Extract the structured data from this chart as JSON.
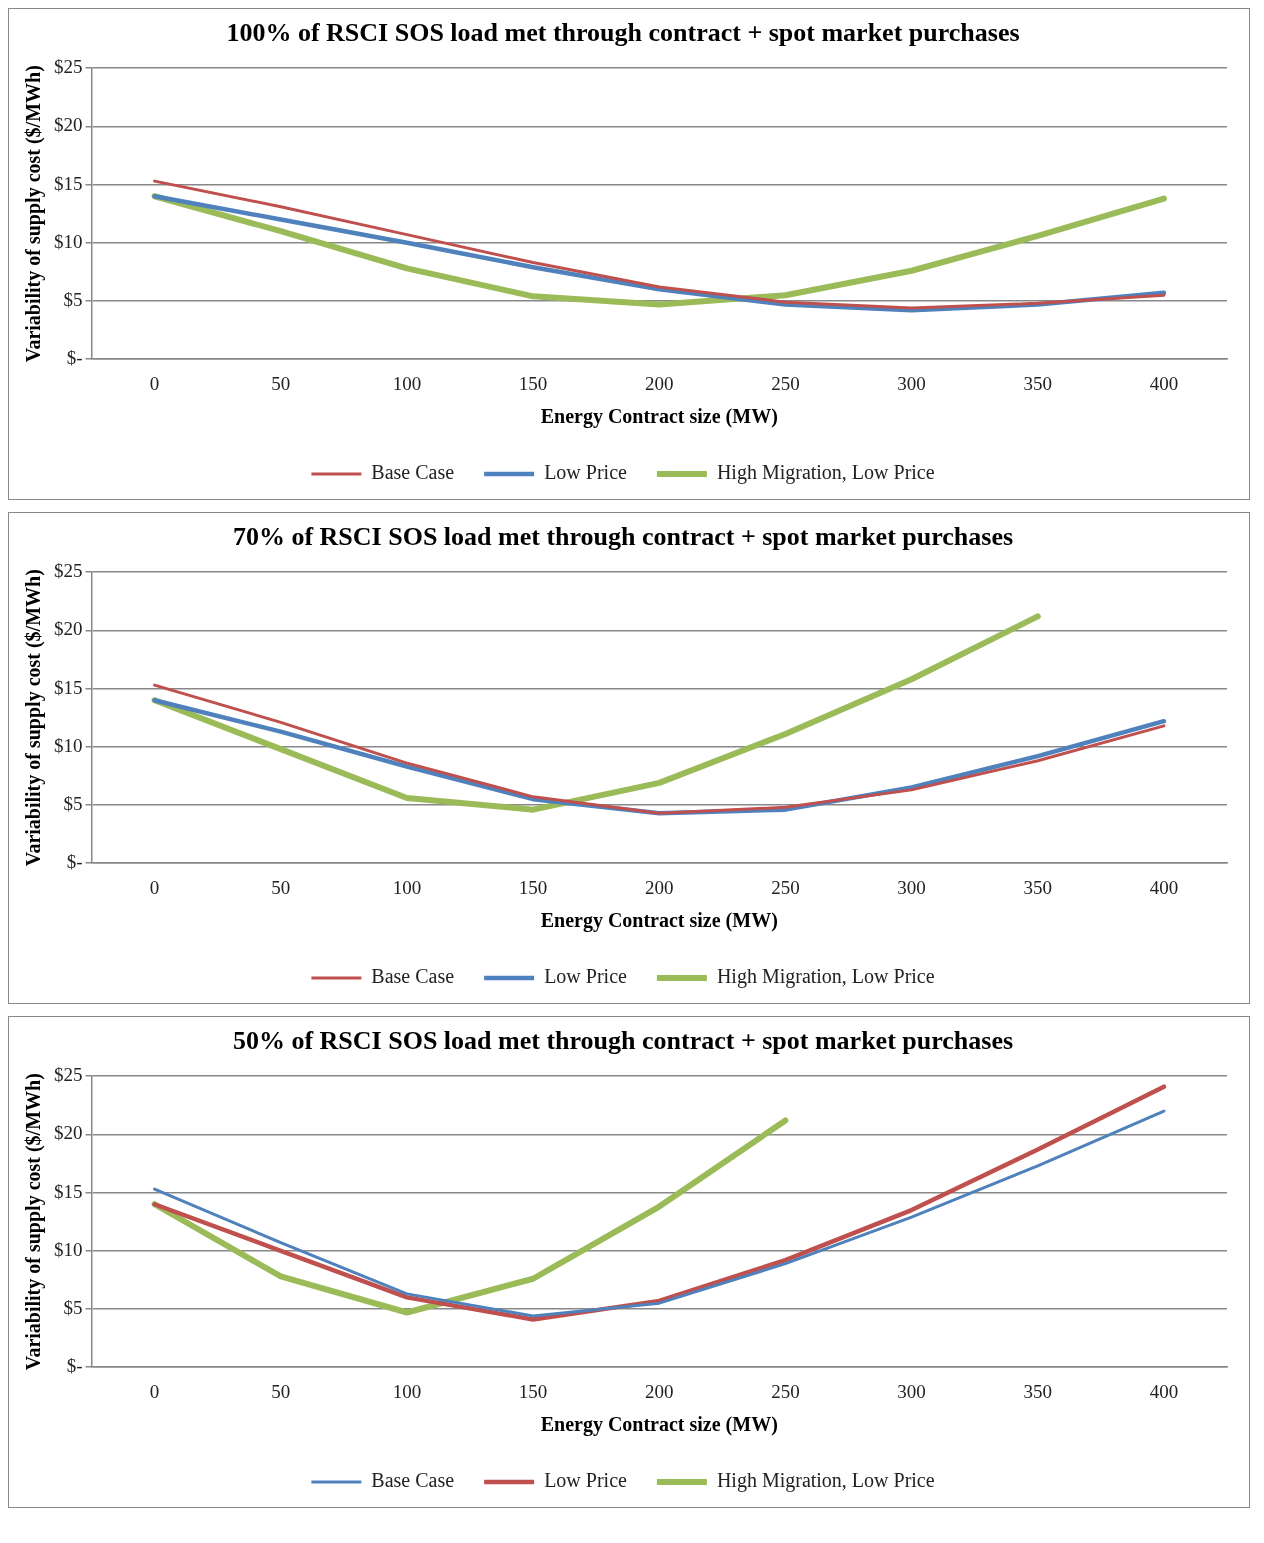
{
  "chart_data": [
    {
      "type": "line",
      "title": "100% of RSCI SOS load met through contract + spot market purchases",
      "xlabel": "Energy Contract size (MW)",
      "ylabel": "Variability of supply cost ($/MWh)",
      "categories": [
        "0",
        "50",
        "100",
        "150",
        "200",
        "250",
        "300",
        "350",
        "400"
      ],
      "ylim": [
        0,
        25
      ],
      "yticks": [
        {
          "value": 0,
          "label": "$-"
        },
        {
          "value": 5,
          "label": "$5"
        },
        {
          "value": 10,
          "label": "$10"
        },
        {
          "value": 15,
          "label": "$15"
        },
        {
          "value": 20,
          "label": "$20"
        },
        {
          "value": 25,
          "label": "$25"
        }
      ],
      "grid": "y",
      "legend": "bottom",
      "marker": "none",
      "line_style": "solid",
      "series": [
        {
          "name": "Base Case",
          "color": "#c0504d",
          "values": [
            15.3,
            13.1,
            10.7,
            8.3,
            6.2,
            4.9,
            4.4,
            4.8,
            5.5
          ]
        },
        {
          "name": "Low Price",
          "color": "#4f81bd",
          "values": [
            14.0,
            12.0,
            10.0,
            7.9,
            6.0,
            4.7,
            4.2,
            4.7,
            5.7
          ]
        },
        {
          "name": "High Migration, Low Price",
          "color": "#9bbb59",
          "values": [
            14.0,
            11.0,
            7.8,
            5.4,
            4.7,
            5.5,
            7.6,
            10.6,
            13.8
          ]
        }
      ]
    },
    {
      "type": "line",
      "title": "70% of RSCI SOS load met through contract + spot market purchases",
      "xlabel": "Energy Contract size (MW)",
      "ylabel": "Variability of supply cost ($/MWh)",
      "categories": [
        "0",
        "50",
        "100",
        "150",
        "200",
        "250",
        "300",
        "350",
        "400"
      ],
      "ylim": [
        0,
        25
      ],
      "yticks": [
        {
          "value": 0,
          "label": "$-"
        },
        {
          "value": 5,
          "label": "$5"
        },
        {
          "value": 10,
          "label": "$10"
        },
        {
          "value": 15,
          "label": "$15"
        },
        {
          "value": 20,
          "label": "$20"
        },
        {
          "value": 25,
          "label": "$25"
        }
      ],
      "grid": "y",
      "legend": "bottom",
      "marker": "none",
      "line_style": "solid",
      "series": [
        {
          "name": "Base Case",
          "color": "#c0504d",
          "values": [
            15.3,
            12.1,
            8.6,
            5.7,
            4.3,
            4.8,
            6.3,
            8.8,
            11.8
          ]
        },
        {
          "name": "Low Price",
          "color": "#4f81bd",
          "values": [
            14.0,
            11.3,
            8.3,
            5.5,
            4.3,
            4.6,
            6.5,
            9.2,
            12.2
          ]
        },
        {
          "name": "High Migration, Low Price",
          "color": "#9bbb59",
          "values": [
            14.0,
            9.8,
            5.6,
            4.6,
            6.9,
            11.1,
            15.8,
            21.2,
            null
          ]
        }
      ]
    },
    {
      "type": "line",
      "title": "50% of RSCI SOS load met through contract + spot market purchases",
      "xlabel": "Energy Contract size (MW)",
      "ylabel": "Variability of supply cost ($/MWh)",
      "categories": [
        "0",
        "50",
        "100",
        "150",
        "200",
        "250",
        "300",
        "350",
        "400"
      ],
      "ylim": [
        0,
        25
      ],
      "yticks": [
        {
          "value": 0,
          "label": "$-"
        },
        {
          "value": 5,
          "label": "$5"
        },
        {
          "value": 10,
          "label": "$10"
        },
        {
          "value": 15,
          "label": "$15"
        },
        {
          "value": 20,
          "label": "$20"
        },
        {
          "value": 25,
          "label": "$25"
        }
      ],
      "grid": "y",
      "legend": "bottom",
      "marker": "none",
      "line_style": "solid",
      "series": [
        {
          "name": "Base Case",
          "color": "#4f81bd",
          "values": [
            15.3,
            10.7,
            6.3,
            4.4,
            5.5,
            8.9,
            12.9,
            17.3,
            22.0
          ]
        },
        {
          "name": "Low Price",
          "color": "#c0504d",
          "values": [
            14.0,
            10.0,
            6.0,
            4.1,
            5.7,
            9.2,
            13.5,
            18.7,
            24.1
          ]
        },
        {
          "name": "High Migration, Low Price",
          "color": "#9bbb59",
          "values": [
            14.0,
            7.8,
            4.7,
            7.6,
            13.8,
            21.2,
            null,
            null,
            null
          ]
        }
      ]
    }
  ]
}
